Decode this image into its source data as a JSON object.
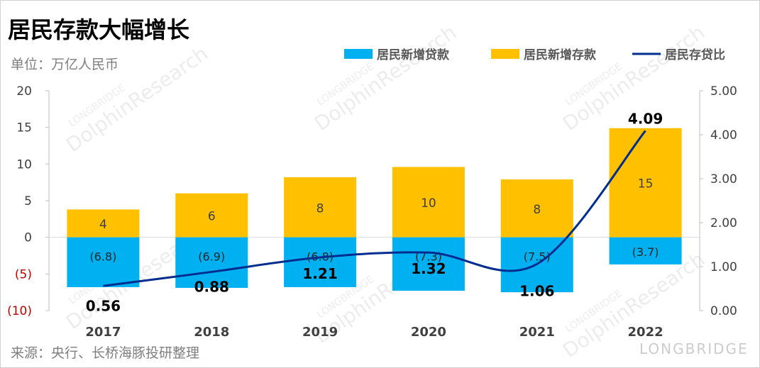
{
  "chart_data": {
    "type": "bar",
    "title": "居民存款大幅增长",
    "subtitle": "单位：万亿人民币",
    "source": "来源：央行、长桥海豚投研整理",
    "categories": [
      "2017",
      "2018",
      "2019",
      "2020",
      "2021",
      "2022"
    ],
    "series": [
      {
        "name": "居民新增贷款",
        "type": "bar",
        "color": "#00b0f0",
        "values": [
          -6.8,
          -6.9,
          -6.8,
          -7.3,
          -7.5,
          -3.7
        ],
        "labels": [
          "(6.8)",
          "(6.9)",
          "(6.8)",
          "(7.3)",
          "(7.5)",
          "(3.7)"
        ]
      },
      {
        "name": "居民新增存款",
        "type": "bar",
        "color": "#ffc000",
        "values": [
          3.8,
          6.0,
          8.2,
          9.6,
          7.9,
          14.9
        ],
        "labels": [
          "4",
          "6",
          "8",
          "10",
          "8",
          "15"
        ]
      },
      {
        "name": "居民存贷比",
        "type": "line",
        "axis": "right",
        "color": "#002d8f",
        "values": [
          0.56,
          0.88,
          1.21,
          1.32,
          1.06,
          4.09
        ],
        "labels": [
          "0.56",
          "0.88",
          "1.21",
          "1.32",
          "1.06",
          "4.09"
        ]
      }
    ],
    "left_axis": {
      "ylim": [
        -10,
        20
      ],
      "ticks": [
        "20",
        "15",
        "10",
        "5",
        "0",
        "(5)",
        "(10)"
      ],
      "negative_tick_color": "#c00000"
    },
    "right_axis": {
      "ylim": [
        0,
        5
      ],
      "ticks": [
        "5.00",
        "4.00",
        "3.00",
        "2.00",
        "1.00",
        "0.00"
      ]
    },
    "legend_placement": "top-right",
    "watermark": [
      "LONGBRIDGE",
      "DolphinResearch"
    ]
  }
}
